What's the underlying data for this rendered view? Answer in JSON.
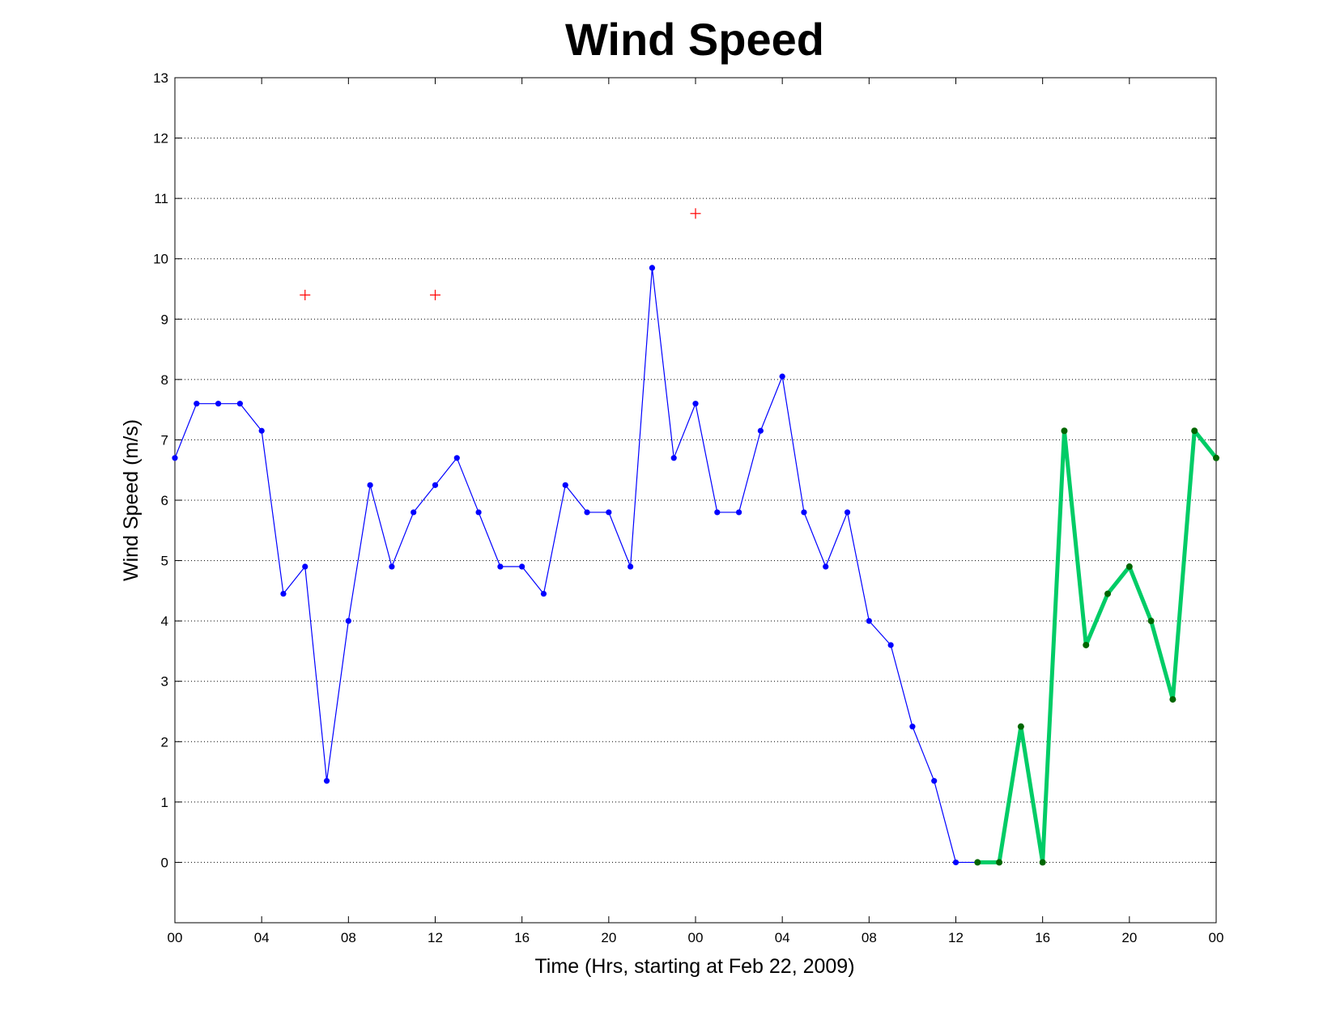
{
  "chart_data": {
    "type": "line",
    "title": "Wind Speed",
    "xlabel": "Time (Hrs, starting at Feb 22, 2009)",
    "ylabel": "Wind Speed (m/s)",
    "xlim": [
      0,
      48
    ],
    "ylim": [
      -1,
      13
    ],
    "x_ticks": [
      {
        "value": 0,
        "label": "00"
      },
      {
        "value": 4,
        "label": "04"
      },
      {
        "value": 8,
        "label": "08"
      },
      {
        "value": 12,
        "label": "12"
      },
      {
        "value": 16,
        "label": "16"
      },
      {
        "value": 20,
        "label": "20"
      },
      {
        "value": 24,
        "label": "00"
      },
      {
        "value": 28,
        "label": "04"
      },
      {
        "value": 32,
        "label": "08"
      },
      {
        "value": 36,
        "label": "12"
      },
      {
        "value": 40,
        "label": "16"
      },
      {
        "value": 44,
        "label": "20"
      },
      {
        "value": 48,
        "label": "00"
      }
    ],
    "y_ticks": [
      0,
      1,
      2,
      3,
      4,
      5,
      6,
      7,
      8,
      9,
      10,
      11,
      12,
      13
    ],
    "grid": "horizontal-dotted",
    "series": [
      {
        "color": "#0000ff",
        "marker_color": "#0000ff",
        "line_width": "thin",
        "x": [
          0,
          1,
          2,
          3,
          4,
          5,
          6,
          7,
          8,
          9,
          10,
          11,
          12,
          13,
          14,
          15,
          16,
          17,
          18,
          19,
          20,
          21,
          22,
          23,
          24,
          25,
          26,
          27,
          28,
          29,
          30,
          31,
          32,
          33,
          34,
          35,
          36,
          37
        ],
        "y": [
          6.7,
          7.6,
          7.6,
          7.6,
          7.15,
          4.45,
          4.9,
          1.35,
          4.0,
          6.25,
          4.9,
          5.8,
          6.25,
          6.7,
          5.8,
          4.9,
          4.9,
          4.45,
          6.25,
          5.8,
          5.8,
          4.9,
          9.85,
          6.7,
          7.6,
          5.8,
          5.8,
          7.15,
          8.05,
          5.8,
          4.9,
          5.8,
          4.0,
          3.6,
          2.25,
          1.35,
          0.0,
          0.0
        ]
      },
      {
        "color": "#00cc66",
        "marker_color": "#006600",
        "line_width": "thick",
        "x": [
          37,
          38,
          39,
          40,
          41,
          42,
          43,
          44,
          45,
          46,
          47,
          48
        ],
        "y": [
          0.0,
          0.0,
          2.25,
          0.0,
          7.15,
          3.6,
          4.45,
          4.9,
          4.0,
          2.7,
          7.15,
          6.7
        ]
      }
    ],
    "markers": {
      "color": "#ff0000",
      "shape": "plus",
      "points": [
        {
          "x": 6,
          "y": 9.4
        },
        {
          "x": 12,
          "y": 9.4
        },
        {
          "x": 24,
          "y": 10.75
        }
      ]
    }
  }
}
